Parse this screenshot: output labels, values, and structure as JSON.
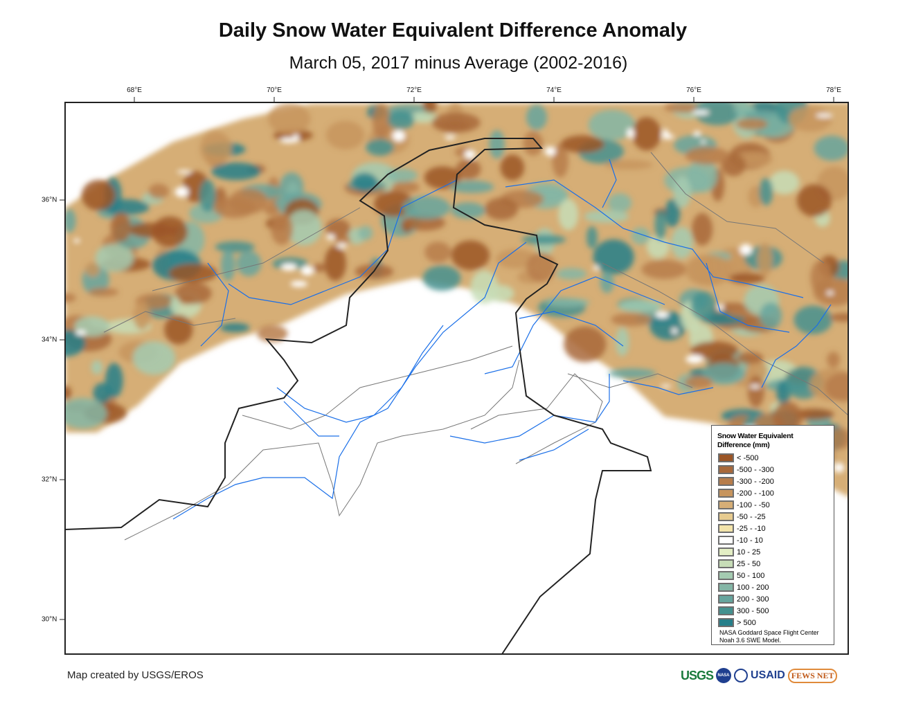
{
  "header": {
    "title": "Daily Snow Water Equivalent Difference Anomaly",
    "subtitle": "March 05, 2017 minus Average (2002-2016)"
  },
  "axes": {
    "longitude_labels": [
      "68°E",
      "70°E",
      "72°E",
      "74°E",
      "76°E",
      "78°E"
    ],
    "latitude_labels": [
      "36°N",
      "34°N",
      "32°N",
      "30°N"
    ]
  },
  "legend": {
    "title_line1": "Snow Water Equivalent",
    "title_line2": "Difference (mm)",
    "items": [
      {
        "label": "< -500",
        "color": "#9b5526"
      },
      {
        "label": "-500 - -300",
        "color": "#a8683a"
      },
      {
        "label": "-300 - -200",
        "color": "#b77d4b"
      },
      {
        "label": "-200 - -100",
        "color": "#c7955e"
      },
      {
        "label": "-100 - -50",
        "color": "#d6ae76"
      },
      {
        "label": "-50 - -25",
        "color": "#e7cb8f"
      },
      {
        "label": "-25 - -10",
        "color": "#f3e4aa"
      },
      {
        "label": "-10 - 10",
        "color": "#ffffff"
      },
      {
        "label": "10 - 25",
        "color": "#e3eec4"
      },
      {
        "label": "25 - 50",
        "color": "#c7ddb7"
      },
      {
        "label": "50 - 100",
        "color": "#a4cbb1"
      },
      {
        "label": "100 - 200",
        "color": "#84b6a6"
      },
      {
        "label": "200 - 300",
        "color": "#66a59e"
      },
      {
        "label": "300 - 500",
        "color": "#44918f"
      },
      {
        "label": "> 500",
        "color": "#267f8a"
      }
    ],
    "credit_line1": "NASA Goddard Space Flight Center",
    "credit_line2": "Noah 3.6 SWE Model."
  },
  "footer": {
    "credit": "Map created by USGS/EROS",
    "logos": [
      "USGS",
      "NASA",
      "USAID",
      "FEWS NET"
    ]
  },
  "colors": {
    "border": "#222222",
    "river": "#1a6fe8",
    "admin": "#777777"
  }
}
